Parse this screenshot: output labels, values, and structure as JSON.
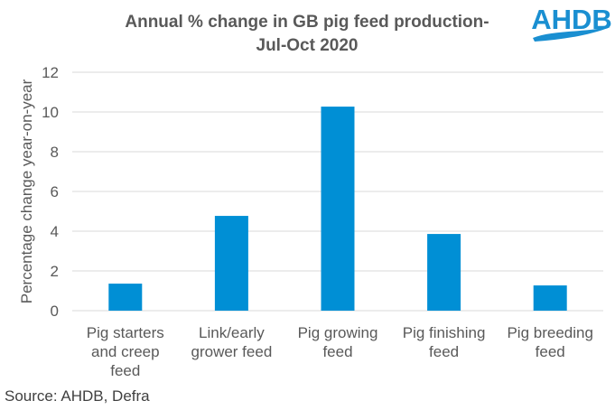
{
  "chart_data": {
    "type": "bar",
    "title_lines": [
      "Annual % change in GB pig feed production-",
      "Jul-Oct 2020"
    ],
    "categories": [
      [
        "Pig starters",
        "and creep",
        "feed"
      ],
      [
        "Link/early",
        "grower feed"
      ],
      [
        "Pig growing",
        "feed"
      ],
      [
        "Pig finishing",
        "feed"
      ],
      [
        "Pig breeding",
        "feed"
      ]
    ],
    "values": [
      1.36,
      4.77,
      10.27,
      3.86,
      1.27
    ],
    "xlabel": "",
    "ylabel": "Percentage change year-on-year",
    "ylim": [
      0,
      12
    ],
    "yticks": [
      0,
      2,
      4,
      6,
      8,
      10,
      12
    ],
    "grid": true,
    "legend": "none",
    "bar_color": "#008fd5",
    "source": "Source: AHDB, Defra"
  },
  "logo": {
    "text": "AHDB",
    "color": "#1a8fd1"
  }
}
